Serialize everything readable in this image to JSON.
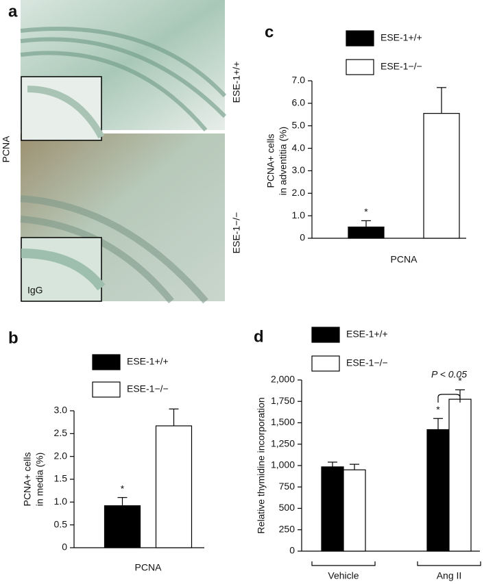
{
  "image_panel": {
    "label": "a",
    "stain": "PCNA",
    "top_genotype": "ESE-1+/+",
    "bottom_genotype": "ESE-1−/−",
    "inset_label": "IgG"
  },
  "chart_data": [
    {
      "type": "bar",
      "panel": "b",
      "categories": [
        "PCNA"
      ],
      "ylabel": [
        "PCNA+ cells",
        "in media (%)"
      ],
      "ylim": [
        0,
        3
      ],
      "yticks": [
        0,
        0.5,
        {
          "value": 1,
          "label": "1.0"
        },
        1.5,
        {
          "value": 2,
          "label": "2.0"
        },
        2.5,
        {
          "value": 3,
          "label": "3.0"
        }
      ],
      "series": [
        {
          "name": "ESE-1+/+",
          "color": "#000000",
          "values": [
            0.92
          ],
          "errors": [
            0.18
          ],
          "sig_labels": [
            "*"
          ]
        },
        {
          "name": "ESE-1−/−",
          "color": "#ffffff",
          "values": [
            2.67
          ],
          "errors": [
            0.37
          ]
        }
      ]
    },
    {
      "type": "bar",
      "panel": "c",
      "categories": [
        "PCNA"
      ],
      "ylabel": [
        "PCNA+ cells",
        "in adventitia (%)"
      ],
      "ylim": [
        0,
        7
      ],
      "yticks": [
        0,
        {
          "value": 1,
          "label": "1.0"
        },
        {
          "value": 2,
          "label": "2.0"
        },
        {
          "value": 3,
          "label": "3.0"
        },
        {
          "value": 4,
          "label": "4.0"
        },
        {
          "value": 5,
          "label": "5.0"
        },
        {
          "value": 6,
          "label": "6.0"
        },
        {
          "value": 7,
          "label": "7.0"
        }
      ],
      "series": [
        {
          "name": "ESE-1+/+",
          "color": "#000000",
          "values": [
            0.5
          ],
          "errors": [
            0.28
          ],
          "sig_labels": [
            "*"
          ]
        },
        {
          "name": "ESE-1−/−",
          "color": "#ffffff",
          "values": [
            5.55
          ],
          "errors": [
            1.15
          ]
        }
      ]
    },
    {
      "type": "bar",
      "panel": "d",
      "categories": [
        "Vehicle",
        "Ang II"
      ],
      "ylabel": [
        "Relative thymidine incorporation"
      ],
      "ylim": [
        0,
        2000
      ],
      "yticks": [
        0,
        250,
        500,
        750,
        {
          "value": 1000,
          "label": "1,000"
        },
        {
          "value": 1250,
          "label": "1,250"
        },
        {
          "value": 1500,
          "label": "1,500"
        },
        {
          "value": 1750,
          "label": "1,750"
        },
        {
          "value": 2000,
          "label": "2,000"
        }
      ],
      "annotation": "P < 0.05",
      "series": [
        {
          "name": "ESE-1+/+",
          "color": "#000000",
          "values": [
            985,
            1420
          ],
          "errors": [
            55,
            130
          ],
          "sig_labels": [
            null,
            "*"
          ]
        },
        {
          "name": "ESE-1−/−",
          "color": "#ffffff",
          "values": [
            950,
            1775
          ],
          "errors": [
            65,
            110
          ],
          "sig_labels": [
            null,
            "*"
          ]
        }
      ]
    }
  ]
}
